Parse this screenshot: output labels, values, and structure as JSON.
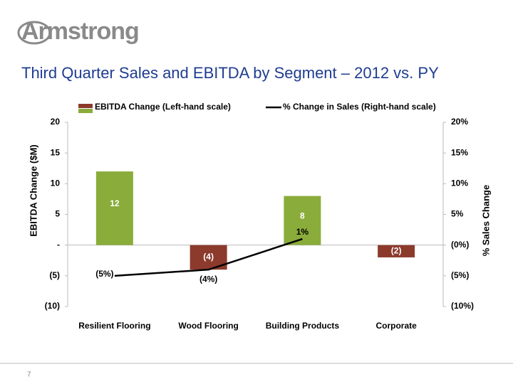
{
  "logo": "Armstrong",
  "page_number": "7",
  "chart_data": {
    "type": "bar",
    "title": "Third Quarter Sales and EBITDA by Segment – 2012 vs. PY",
    "ylabel": "EBITDA Change ($M)",
    "y2label": "% Sales Change",
    "categories": [
      "Resilient Flooring",
      "Wood Flooring",
      "Building Products",
      "Corporate"
    ],
    "series": [
      {
        "name": "EBITDA Change (Left-hand scale)",
        "type": "bar",
        "color": "#8aac3b",
        "negative_color": "#8c3a2c",
        "values": [
          12,
          -4,
          8,
          -2
        ],
        "value_labels": [
          "12",
          "(4)",
          "8",
          "(2)"
        ]
      },
      {
        "name": "% Change in Sales (Right-hand scale)",
        "type": "line",
        "axis": "y2",
        "color": "#000000",
        "values": [
          -5,
          -4,
          1,
          null
        ],
        "value_labels": [
          "(5%)",
          "(4%)",
          "1%",
          null
        ]
      }
    ],
    "ylim": [
      -10,
      20
    ],
    "yticks": [
      {
        "value": -10,
        "label": "(10)"
      },
      {
        "value": -5,
        "label": "(5)"
      },
      {
        "value": 0,
        "label": "-"
      },
      5,
      10,
      15,
      20
    ],
    "y2lim": [
      -10,
      20
    ],
    "y2ticks": [
      {
        "value": -10,
        "label": "(10%)"
      },
      {
        "value": -5,
        "label": "(5%)"
      },
      {
        "value": 0,
        "label": "(0%)"
      },
      {
        "value": 5,
        "label": "5%"
      },
      {
        "value": 10,
        "label": "10%"
      },
      {
        "value": 15,
        "label": "15%"
      },
      {
        "value": 20,
        "label": "20%"
      }
    ],
    "legend": "top"
  }
}
